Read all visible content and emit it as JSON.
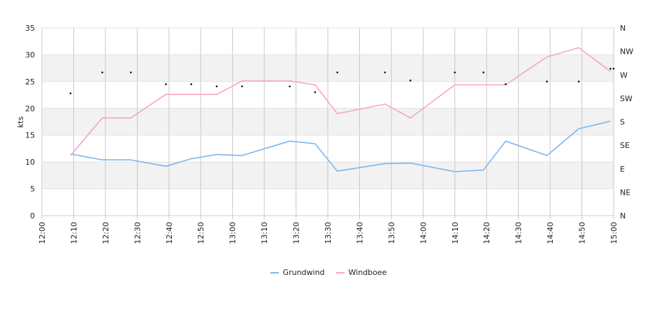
{
  "chart_data": {
    "type": "line",
    "title": "",
    "ylabel": "kts",
    "ylim": [
      0,
      35
    ],
    "yticks": [
      0,
      5,
      10,
      15,
      20,
      25,
      30,
      35
    ],
    "right_axis_labels": [
      "N",
      "NE",
      "E",
      "SE",
      "S",
      "SW",
      "W",
      "NW",
      "N"
    ],
    "x_ticks": [
      "12:00",
      "12:10",
      "12:20",
      "12:30",
      "12:40",
      "12:50",
      "13:00",
      "13:10",
      "13:20",
      "13:30",
      "13:40",
      "13:50",
      "14:00",
      "14:10",
      "14:20",
      "14:30",
      "14:40",
      "14:50",
      "15:00"
    ],
    "x_range": [
      "12:00",
      "15:00"
    ],
    "grid": true,
    "banded_background": true,
    "legend_position": "bottom",
    "series": [
      {
        "name": "Grundwind",
        "color": "#7cb5ec",
        "x": [
          "12:09",
          "12:19",
          "12:28",
          "12:39",
          "12:47",
          "12:55",
          "13:03",
          "13:18",
          "13:26",
          "13:33",
          "13:48",
          "13:56",
          "14:10",
          "14:19",
          "14:26",
          "14:39",
          "14:49",
          "14:59"
        ],
        "values": [
          11.5,
          10.4,
          10.4,
          9.2,
          10.6,
          11.4,
          11.2,
          13.9,
          13.4,
          8.3,
          9.7,
          9.8,
          8.2,
          8.5,
          13.9,
          11.2,
          16.2,
          17.6
        ]
      },
      {
        "name": "Windboee",
        "color": "#f7a3c7",
        "x": [
          "12:09",
          "12:19",
          "12:28",
          "12:39",
          "12:47",
          "12:55",
          "13:03",
          "13:18",
          "13:26",
          "13:33",
          "13:48",
          "13:56",
          "14:10",
          "14:19",
          "14:26",
          "14:39",
          "14:49",
          "14:59"
        ],
        "values": [
          11.2,
          18.2,
          18.2,
          22.6,
          22.6,
          22.6,
          25.1,
          25.1,
          24.4,
          19.0,
          20.8,
          18.2,
          24.4,
          24.4,
          24.4,
          29.6,
          31.3,
          26.9
        ]
      }
    ],
    "direction_markers": {
      "x": [
        "12:09",
        "12:19",
        "12:28",
        "12:39",
        "12:47",
        "12:55",
        "13:03",
        "13:18",
        "13:26",
        "13:33",
        "13:48",
        "13:56",
        "14:10",
        "14:19",
        "14:26",
        "14:39",
        "14:49",
        "14:59",
        "15:00"
      ],
      "values": [
        22.8,
        26.7,
        26.7,
        24.5,
        24.5,
        24.1,
        24.1,
        24.1,
        23.0,
        26.7,
        26.7,
        25.2,
        26.7,
        26.7,
        24.5,
        25.0,
        25.0,
        27.4,
        27.4
      ]
    }
  }
}
